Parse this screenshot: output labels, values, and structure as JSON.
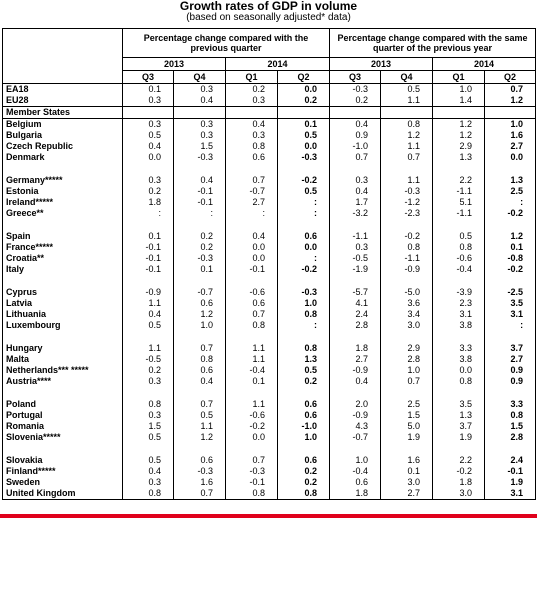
{
  "title": "Growth rates of GDP in volume",
  "subtitle": "(based on seasonally adjusted* data)",
  "header": {
    "group1": "Percentage change compared with the previous quarter",
    "group2": "Percentage change compared with the same quarter of the previous year",
    "year2013": "2013",
    "year2014": "2014",
    "q3": "Q3",
    "q4": "Q4",
    "q1": "Q1",
    "q2": "Q2"
  },
  "member_states_label": "Member States",
  "aggregates": [
    {
      "name": "EA18",
      "v": [
        "0.1",
        "0.3",
        "0.2",
        "0.0",
        "-0.3",
        "0.5",
        "1.0",
        "0.7"
      ]
    },
    {
      "name": "EU28",
      "v": [
        "0.3",
        "0.4",
        "0.3",
        "0.2",
        "0.2",
        "1.1",
        "1.4",
        "1.2"
      ]
    }
  ],
  "groups": [
    [
      {
        "name": "Belgium",
        "v": [
          "0.3",
          "0.3",
          "0.4",
          "0.1",
          "0.4",
          "0.8",
          "1.2",
          "1.0"
        ]
      },
      {
        "name": "Bulgaria",
        "v": [
          "0.5",
          "0.3",
          "0.3",
          "0.5",
          "0.9",
          "1.2",
          "1.2",
          "1.6"
        ]
      },
      {
        "name": "Czech Republic",
        "v": [
          "0.4",
          "1.5",
          "0.8",
          "0.0",
          "-1.0",
          "1.1",
          "2.9",
          "2.7"
        ]
      },
      {
        "name": "Denmark",
        "v": [
          "0.0",
          "-0.3",
          "0.6",
          "-0.3",
          "0.7",
          "0.7",
          "1.3",
          "0.0"
        ]
      }
    ],
    [
      {
        "name": "Germany*****",
        "v": [
          "0.3",
          "0.4",
          "0.7",
          "-0.2",
          "0.3",
          "1.1",
          "2.2",
          "1.3"
        ]
      },
      {
        "name": "Estonia",
        "v": [
          "0.2",
          "-0.1",
          "-0.7",
          "0.5",
          "0.4",
          "-0.3",
          "-1.1",
          "2.5"
        ]
      },
      {
        "name": "Ireland*****",
        "v": [
          "1.8",
          "-0.1",
          "2.7",
          ":",
          "1.7",
          "-1.2",
          "5.1",
          ":"
        ]
      },
      {
        "name": "Greece**",
        "v": [
          ":",
          ":",
          ":",
          ":",
          "-3.2",
          "-2.3",
          "-1.1",
          "-0.2"
        ]
      }
    ],
    [
      {
        "name": "Spain",
        "v": [
          "0.1",
          "0.2",
          "0.4",
          "0.6",
          "-1.1",
          "-0.2",
          "0.5",
          "1.2"
        ]
      },
      {
        "name": "France*****",
        "v": [
          "-0.1",
          "0.2",
          "0.0",
          "0.0",
          "0.3",
          "0.8",
          "0.8",
          "0.1"
        ]
      },
      {
        "name": "Croatia**",
        "v": [
          "-0.1",
          "-0.3",
          "0.0",
          ":",
          "-0.5",
          "-1.1",
          "-0.6",
          "-0.8"
        ]
      },
      {
        "name": "Italy",
        "v": [
          "-0.1",
          "0.1",
          "-0.1",
          "-0.2",
          "-1.9",
          "-0.9",
          "-0.4",
          "-0.2"
        ]
      }
    ],
    [
      {
        "name": "Cyprus",
        "v": [
          "-0.9",
          "-0.7",
          "-0.6",
          "-0.3",
          "-5.7",
          "-5.0",
          "-3.9",
          "-2.5"
        ]
      },
      {
        "name": "Latvia",
        "v": [
          "1.1",
          "0.6",
          "0.6",
          "1.0",
          "4.1",
          "3.6",
          "2.3",
          "3.5"
        ]
      },
      {
        "name": "Lithuania",
        "v": [
          "0.4",
          "1.2",
          "0.7",
          "0.8",
          "2.4",
          "3.4",
          "3.1",
          "3.1"
        ]
      },
      {
        "name": "Luxembourg",
        "v": [
          "0.5",
          "1.0",
          "0.8",
          ":",
          "2.8",
          "3.0",
          "3.8",
          ":"
        ]
      }
    ],
    [
      {
        "name": "Hungary",
        "v": [
          "1.1",
          "0.7",
          "1.1",
          "0.8",
          "1.8",
          "2.9",
          "3.3",
          "3.7"
        ]
      },
      {
        "name": "Malta",
        "v": [
          "-0.5",
          "0.8",
          "1.1",
          "1.3",
          "2.7",
          "2.8",
          "3.8",
          "2.7"
        ]
      },
      {
        "name": "Netherlands*** *****",
        "v": [
          "0.2",
          "0.6",
          "-0.4",
          "0.5",
          "-0.9",
          "1.0",
          "0.0",
          "0.9"
        ]
      },
      {
        "name": "Austria****",
        "v": [
          "0.3",
          "0.4",
          "0.1",
          "0.2",
          "0.4",
          "0.7",
          "0.8",
          "0.9"
        ]
      }
    ],
    [
      {
        "name": "Poland",
        "v": [
          "0.8",
          "0.7",
          "1.1",
          "0.6",
          "2.0",
          "2.5",
          "3.5",
          "3.3"
        ]
      },
      {
        "name": "Portugal",
        "v": [
          "0.3",
          "0.5",
          "-0.6",
          "0.6",
          "-0.9",
          "1.5",
          "1.3",
          "0.8"
        ]
      },
      {
        "name": "Romania",
        "v": [
          "1.5",
          "1.1",
          "-0.2",
          "-1.0",
          "4.3",
          "5.0",
          "3.7",
          "1.5"
        ]
      },
      {
        "name": "Slovenia*****",
        "v": [
          "0.5",
          "1.2",
          "0.0",
          "1.0",
          "-0.7",
          "1.9",
          "1.9",
          "2.8"
        ]
      }
    ],
    [
      {
        "name": "Slovakia",
        "v": [
          "0.5",
          "0.6",
          "0.7",
          "0.6",
          "1.0",
          "1.6",
          "2.2",
          "2.4"
        ]
      },
      {
        "name": "Finland*****",
        "v": [
          "0.4",
          "-0.3",
          "-0.3",
          "0.2",
          "-0.4",
          "0.1",
          "-0.2",
          "-0.1"
        ]
      },
      {
        "name": "Sweden",
        "v": [
          "0.3",
          "1.6",
          "-0.1",
          "0.2",
          "0.6",
          "3.0",
          "1.8",
          "1.9"
        ]
      },
      {
        "name": "United Kingdom",
        "v": [
          "0.8",
          "0.7",
          "0.8",
          "0.8",
          "1.8",
          "2.7",
          "3.0",
          "3.1"
        ]
      }
    ]
  ]
}
